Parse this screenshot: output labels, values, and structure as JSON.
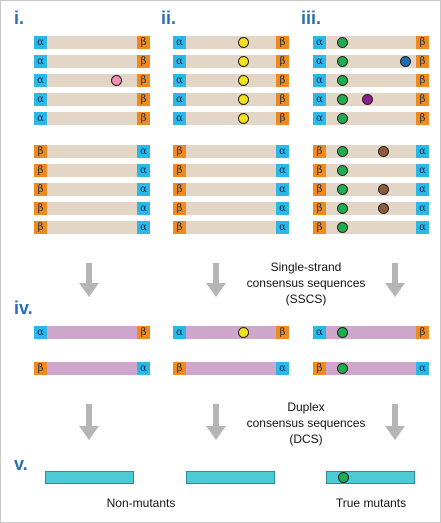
{
  "labels": {
    "i": "i.",
    "ii": "ii.",
    "iii": "iii.",
    "iv": "iv.",
    "v": "v."
  },
  "captions": {
    "sscs": [
      "Single-strand",
      "consensus sequences",
      "(SSCS)"
    ],
    "dcs": [
      "Duplex",
      "consensus sequences",
      "(DCS)"
    ],
    "non_mutants": "Non-mutants",
    "true_mutants": "True mutants"
  },
  "tags": {
    "alpha": "α",
    "beta": "β"
  },
  "colors": {
    "read_bar": "#e3d6c6",
    "sscs_bar": "#cfa6cc",
    "dcs_bar": "#4ccad6",
    "alpha_tag": "#2cb8e6",
    "beta_tag": "#f08a1e",
    "arrow": "#b5b5b5",
    "mutation_pink": "#f090b5",
    "mutation_yellow": "#f5e21a",
    "mutation_green": "#1fae4f",
    "mutation_blue": "#1f6eb4",
    "mutation_purple": "#8b1f8f",
    "mutation_brown": "#8f5a3a"
  }
}
